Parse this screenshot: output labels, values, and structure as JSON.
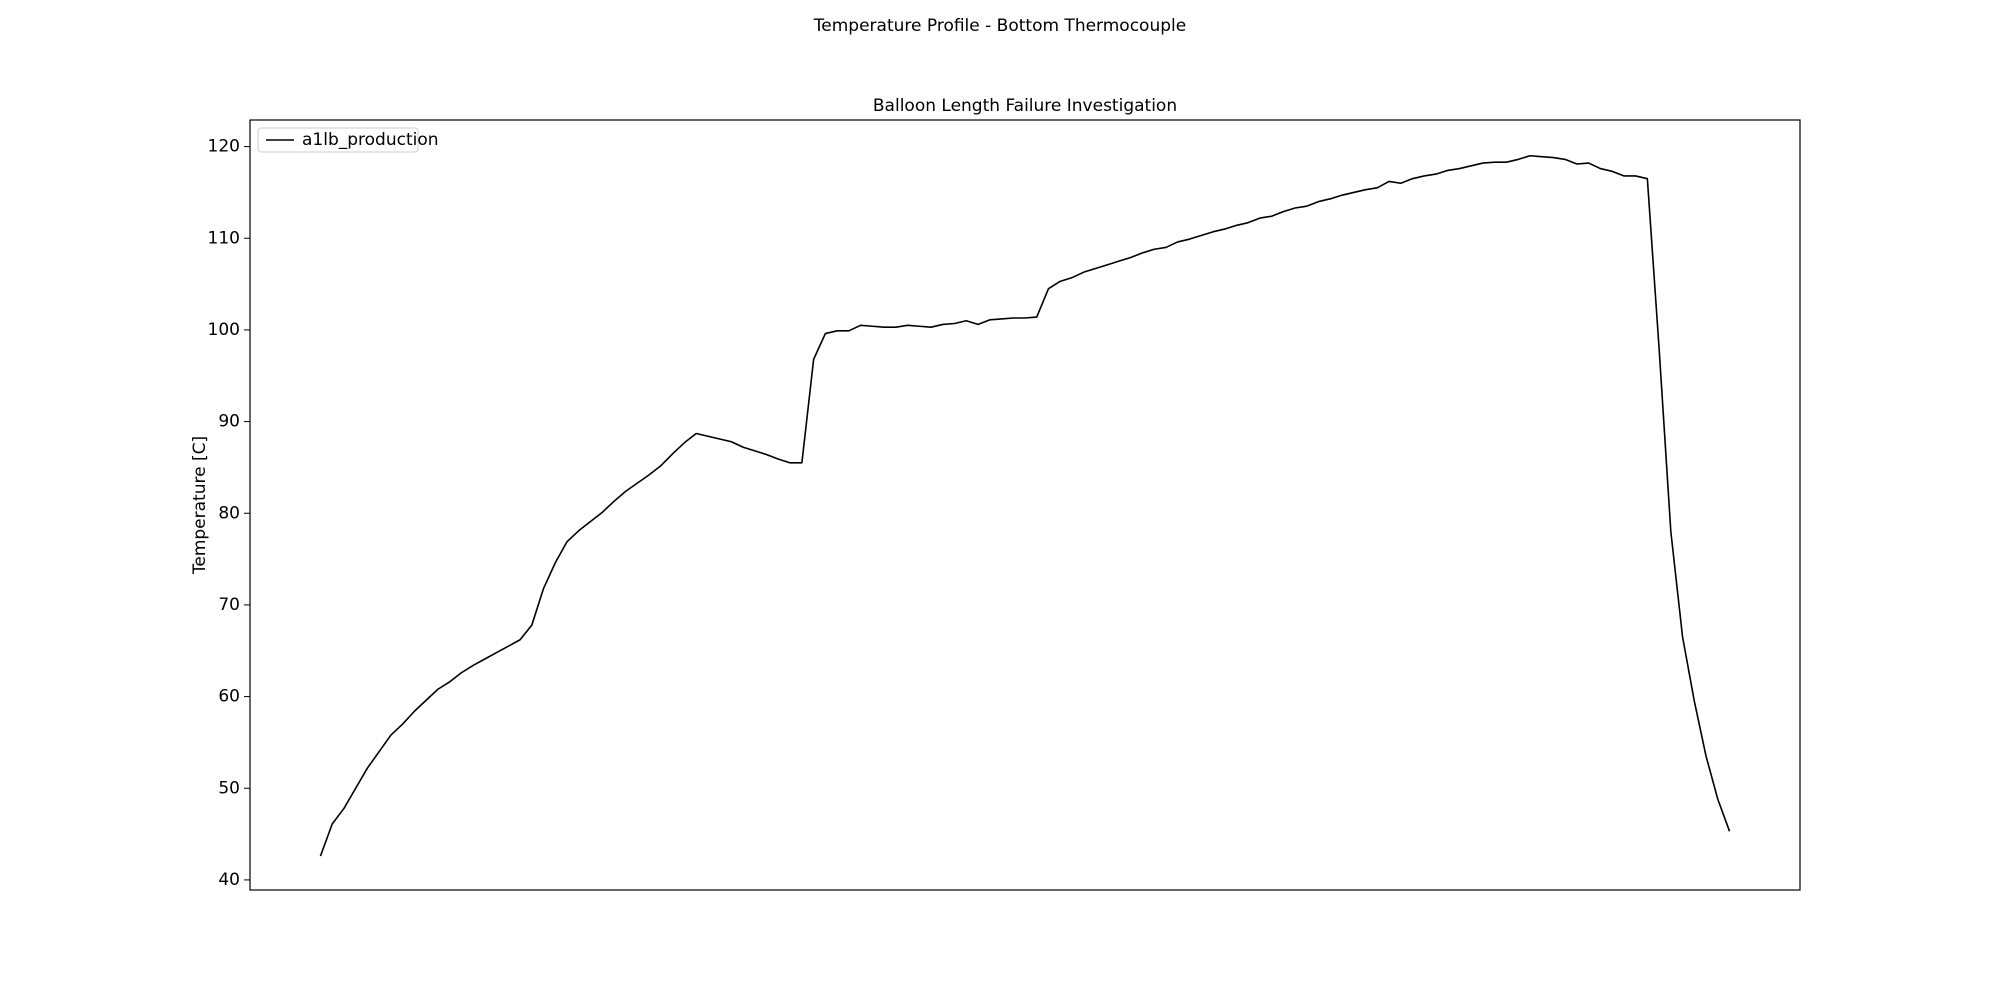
{
  "chart_data": {
    "type": "line",
    "suptitle": "Temperature Profile - Bottom Thermocouple",
    "title": "Balloon Length Failure Investigation",
    "y_label": "Temperature [C]",
    "categories": [
      null,
      null,
      null,
      null,
      null,
      null,
      null,
      null,
      null,
      null,
      null,
      null,
      null,
      null,
      null,
      null,
      null,
      null,
      null,
      null,
      null,
      null,
      null,
      null,
      null,
      null,
      null,
      null,
      null,
      null,
      null,
      null,
      null,
      null,
      null,
      null,
      null,
      null,
      null,
      null,
      null,
      null,
      null,
      null,
      null,
      null,
      null,
      null,
      null,
      null,
      null,
      null,
      null,
      null,
      null,
      null,
      null,
      null,
      null,
      null,
      null,
      null,
      null,
      null,
      null,
      null,
      null,
      null,
      null,
      null,
      null,
      null,
      null,
      null,
      null,
      null,
      null,
      null,
      null,
      null,
      null,
      null,
      null,
      null,
      null,
      null,
      null,
      null,
      null,
      null,
      null,
      null,
      null,
      null,
      null,
      null,
      null,
      null,
      null,
      null,
      null,
      null,
      null,
      null,
      null,
      null,
      null,
      null,
      null,
      null,
      null,
      null,
      null,
      null,
      null,
      null,
      null,
      null,
      null,
      null,
      null
    ],
    "series": [
      {
        "name": "a1lb_production",
        "color": "#000000",
        "values": [
          42.6,
          46.1,
          47.8,
          50,
          52.2,
          54,
          55.8,
          57,
          58.4,
          59.6,
          60.8,
          61.6,
          62.6,
          63.4,
          64.1,
          64.8,
          65.5,
          66.2,
          67.8,
          71.8,
          74.6,
          76.9,
          78.1,
          79.1,
          80.1,
          81.3,
          82.4,
          83.3,
          84.2,
          85.2,
          86.5,
          87.7,
          88.7,
          88.4,
          88.1,
          87.8,
          87.2,
          86.8,
          86.4,
          85.9,
          85.5,
          85.5,
          96.8,
          99.6,
          99.9,
          99.9,
          100.5,
          100.4,
          100.3,
          100.3,
          100.5,
          100.4,
          100.3,
          100.6,
          100.7,
          101,
          100.6,
          101.1,
          101.2,
          101.3,
          101.3,
          101.4,
          104.5,
          105.3,
          105.7,
          106.3,
          106.7,
          107.1,
          107.5,
          107.9,
          108.4,
          108.8,
          109,
          109.6,
          109.9,
          110.3,
          110.7,
          111,
          111.4,
          111.7,
          112.2,
          112.4,
          112.9,
          113.3,
          113.5,
          114,
          114.3,
          114.7,
          115,
          115.3,
          115.5,
          116.2,
          116,
          116.5,
          116.8,
          117,
          117.4,
          117.6,
          117.9,
          118.2,
          118.3,
          118.3,
          118.6,
          119,
          118.9,
          118.8,
          118.6,
          118.1,
          118.2,
          117.6,
          117.3,
          116.8,
          116.8,
          116.5,
          98,
          78,
          66.5,
          59.5,
          53.5,
          48.8,
          45.3
        ]
      }
    ],
    "ylim": [
      38.9,
      122.9
    ],
    "yticks": [
      40,
      50,
      60,
      70,
      80,
      90,
      100,
      110,
      120
    ],
    "grid": false,
    "legend": "upper left"
  }
}
